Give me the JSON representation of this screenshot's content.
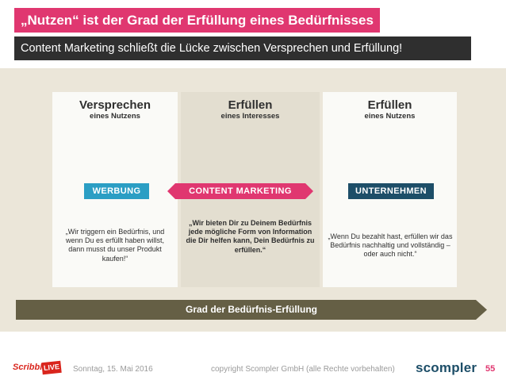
{
  "title": "„Nutzen“ ist der Grad der Erfüllung eines Bedürfnisses",
  "subtitle": "Content Marketing schließt die Lücke zwischen Versprechen und Erfüllung!",
  "columns": [
    {
      "heading": "Versprechen",
      "subheading": "eines Nutzens",
      "label": "WERBUNG",
      "quote": "„Wir triggern ein Bedürfnis, und wenn Du es erfüllt haben willst, dann musst du unser Produkt kaufen!“"
    },
    {
      "heading": "Erfüllen",
      "subheading": "eines Interesses",
      "label": "CONTENT MARKETING",
      "quote": "„Wir bieten Dir zu Deinem Bedürfnis jede mögliche Form von Information die Dir helfen kann, Dein Bedürfnis zu erfüllen.“"
    },
    {
      "heading": "Erfüllen",
      "subheading": "eines Nutzens",
      "label": "UNTERNEHMEN",
      "quote": "„Wenn Du bezahlt hast, erfüllen wir das Bedürfnis nachhaltig und vollständig – oder auch nicht.“"
    }
  ],
  "grad_bar_label": "Grad der Bedürfnis-Erfüllung",
  "footer": {
    "date": "Sonntag, 15. Mai 2016",
    "copyright": "copyright Scompler GmbH (alle Rechte vorbehalten)",
    "page_number": "55",
    "logo_left_text": "Scribble",
    "logo_left_badge": "LIVE",
    "logo_right": "scompler"
  },
  "colors": {
    "title_bg": "#e03770",
    "subtitle_bg": "#2f2f2f",
    "werbung": "#2b9ec4",
    "content_marketing": "#e03770",
    "unternehmen": "#1d4e68",
    "grad_bar": "#655f45",
    "stage": "#ebe6d9"
  }
}
